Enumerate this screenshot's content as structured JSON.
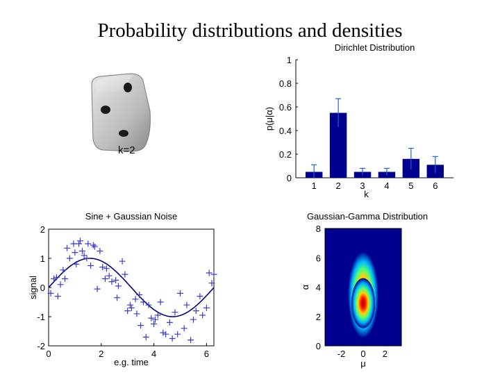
{
  "slide": {
    "title": "Probability distributions and densities"
  },
  "dice": {
    "label": "k=2"
  },
  "chart_data": [
    {
      "type": "bar",
      "title": "Dirichlet Distribution",
      "xlabel": "k",
      "ylabel": "p(μ|α)",
      "categories": [
        "1",
        "2",
        "3",
        "4",
        "5",
        "6"
      ],
      "values": [
        0.05,
        0.55,
        0.05,
        0.05,
        0.16,
        0.11
      ],
      "errors": [
        0.06,
        0.12,
        0.03,
        0.03,
        0.09,
        0.07
      ],
      "ylim": [
        0,
        1
      ],
      "yticks": [
        "0",
        "0.2",
        "0.4",
        "0.6",
        "0.8",
        "1"
      ],
      "bar_color": "#00008f"
    },
    {
      "type": "scatter",
      "title": "Sine + Gaussian Noise",
      "xlabel": "e.g. time",
      "ylabel": "signal",
      "xlim": [
        0,
        6.28
      ],
      "ylim": [
        -2,
        2
      ],
      "xticks": [
        "0",
        "2",
        "4",
        "6"
      ],
      "yticks": [
        "-2",
        "-1",
        "0",
        "1",
        "2"
      ],
      "curve": "sin(x)",
      "x": [
        0.08,
        0.2,
        0.3,
        0.35,
        0.45,
        0.55,
        0.62,
        0.7,
        0.8,
        0.95,
        1.0,
        1.05,
        1.15,
        1.2,
        1.28,
        1.35,
        1.45,
        1.5,
        1.6,
        1.7,
        1.75,
        1.85,
        1.95,
        2.05,
        2.15,
        2.2,
        2.3,
        2.4,
        2.55,
        2.6,
        2.65,
        2.8,
        2.9,
        3.0,
        3.1,
        3.15,
        3.3,
        3.35,
        3.45,
        3.5,
        3.6,
        3.7,
        3.8,
        3.9,
        4.0,
        4.05,
        4.15,
        4.25,
        4.35,
        4.45,
        4.6,
        4.7,
        4.8,
        4.9,
        5.0,
        5.15,
        5.25,
        5.4,
        5.5,
        5.6,
        5.75,
        5.85,
        6.0,
        6.1,
        6.2,
        6.28
      ],
      "y": [
        -0.2,
        0.3,
        0.35,
        -0.3,
        0.1,
        0.6,
        0.3,
        1.35,
        1.0,
        1.5,
        1.2,
        0.8,
        1.5,
        1.6,
        1.25,
        1.1,
        1.0,
        1.5,
        0.75,
        1.45,
        1.4,
        -0.05,
        1.25,
        0.7,
        0.3,
        0.65,
        0.4,
        0.2,
        0.25,
        -0.35,
        0.05,
        0.9,
        0.45,
        -0.8,
        -0.6,
        -0.7,
        -0.4,
        -0.9,
        -0.25,
        -1.3,
        -0.5,
        -1.7,
        -0.6,
        -1.05,
        -1.25,
        -1.1,
        -0.95,
        -0.5,
        -1.55,
        -1.6,
        -1.2,
        -1.75,
        -0.85,
        -1.6,
        -0.2,
        -1.4,
        -0.6,
        -1.8,
        -1.1,
        -0.8,
        -0.3,
        -0.95,
        -0.7,
        0.5,
        0.15,
        0.45
      ]
    },
    {
      "type": "heatmap",
      "title": "Gaussian-Gamma Distribution",
      "xlabel": "μ",
      "ylabel": "α",
      "xlim": [
        -3.5,
        3.5
      ],
      "ylim": [
        0,
        8
      ],
      "xticks": [
        "-2",
        "0",
        "2"
      ],
      "yticks": [
        "0",
        "2",
        "4",
        "6",
        "8"
      ],
      "peak": {
        "mu": 0,
        "alpha": 3
      }
    }
  ]
}
